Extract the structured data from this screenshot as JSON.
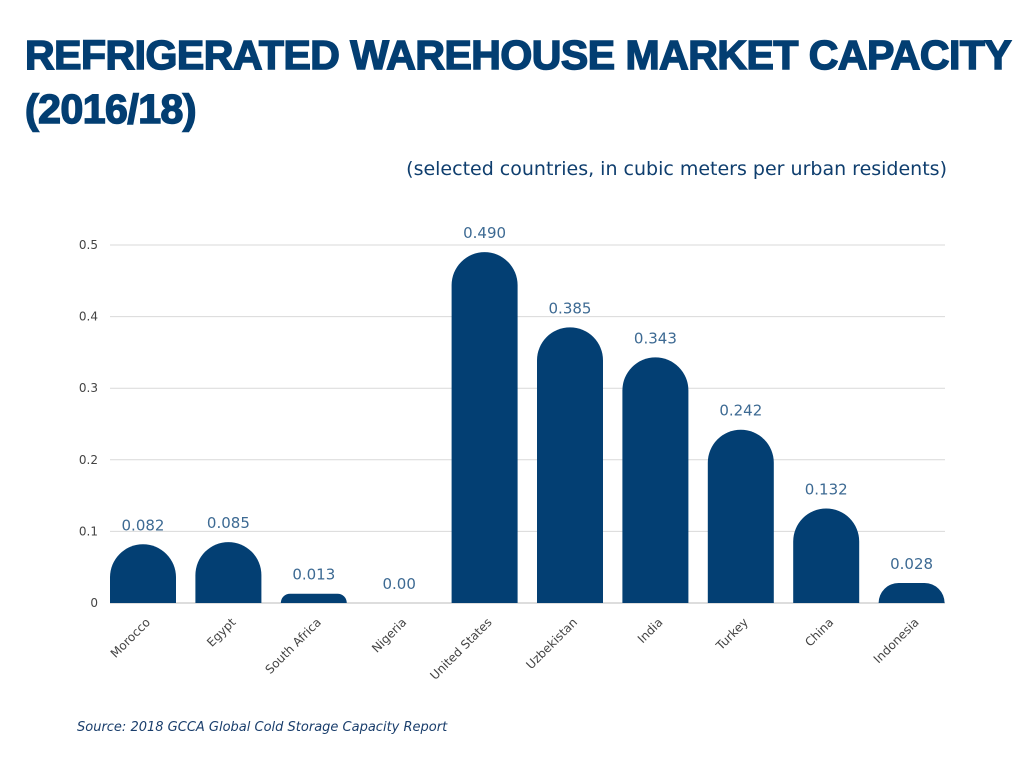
{
  "chart_data": {
    "type": "bar",
    "title": "REFRIGERATED WAREHOUSE MARKET CAPACITY (2016/18)",
    "subtitle": "(selected countries, in cubic meters per urban residents)",
    "source": "Source: 2018 GCCA Global Cold Storage Capacity Report",
    "categories": [
      "Morocco",
      "Egypt",
      "South Africa",
      "Nigeria",
      "United States",
      "Uzbekistan",
      "India",
      "Turkey",
      "China",
      "Indonesia"
    ],
    "values": [
      0.082,
      0.085,
      0.013,
      0.0,
      0.49,
      0.385,
      0.343,
      0.242,
      0.132,
      0.028
    ],
    "data_labels": [
      "0.082",
      "0.085",
      "0.013",
      "0.00",
      "0.490",
      "0.385",
      "0.343",
      "0.242",
      "0.132",
      "0.028"
    ],
    "y_ticks": [
      "0",
      "0.1",
      "0.2",
      "0.3",
      "0.4",
      "0.5"
    ],
    "ylim": [
      0,
      0.5
    ],
    "xlabel": "",
    "ylabel": "",
    "grid": true,
    "legend": "none",
    "colors": {
      "bar": "#033f73",
      "title": "#033e72",
      "grid": "#d9d9d9"
    }
  }
}
